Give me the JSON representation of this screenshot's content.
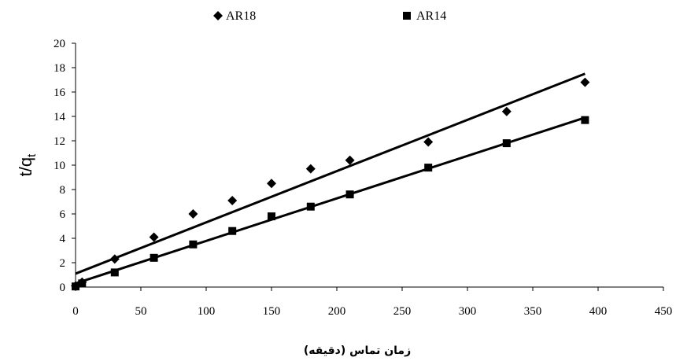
{
  "chart_data": {
    "type": "scatter",
    "title": "",
    "xlabel": "زمان تماس (دقیقه)",
    "ylabel": "t/q",
    "ylabel_subscript": "t",
    "xlim": [
      0,
      450
    ],
    "ylim": [
      0,
      20
    ],
    "x_ticks": [
      0,
      50,
      100,
      150,
      200,
      250,
      300,
      350,
      400,
      450
    ],
    "y_ticks": [
      0,
      2,
      4,
      6,
      8,
      10,
      12,
      14,
      16,
      18,
      20
    ],
    "grid": false,
    "legend_position": "top-center",
    "series": [
      {
        "name": "AR18",
        "marker": "diamond",
        "color": "#000000",
        "x": [
          0,
          5,
          30,
          60,
          90,
          120,
          150,
          180,
          210,
          270,
          330,
          390
        ],
        "y": [
          0.1,
          0.4,
          2.3,
          4.1,
          6.0,
          7.1,
          8.5,
          9.7,
          10.4,
          11.9,
          14.4,
          16.8
        ],
        "trendline": {
          "x": [
            0,
            390
          ],
          "y": [
            1.1,
            17.5
          ]
        }
      },
      {
        "name": "AR14",
        "marker": "square",
        "color": "#000000",
        "x": [
          0,
          5,
          30,
          60,
          90,
          120,
          150,
          180,
          210,
          270,
          330,
          390
        ],
        "y": [
          0.05,
          0.3,
          1.2,
          2.4,
          3.5,
          4.6,
          5.8,
          6.6,
          7.6,
          9.8,
          11.8,
          13.7
        ],
        "trendline": {
          "x": [
            0,
            390
          ],
          "y": [
            0.3,
            13.9
          ]
        }
      }
    ]
  }
}
